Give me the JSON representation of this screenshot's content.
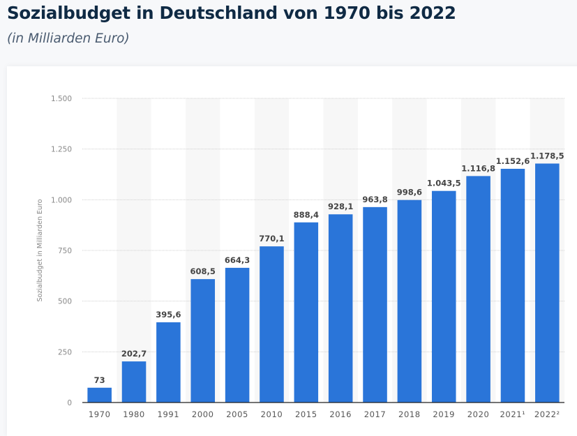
{
  "header": {
    "title": "Sozialbudget in Deutschland von 1970 bis 2022",
    "subtitle": "(in Milliarden Euro)"
  },
  "chart_data": {
    "type": "bar",
    "title": "Sozialbudget in Deutschland von 1970 bis 2022",
    "subtitle": "(in Milliarden Euro)",
    "xlabel": "",
    "ylabel": "Sozialbudget in Milliarden Euro",
    "ylim": [
      0,
      1500
    ],
    "yticks": [
      0,
      250,
      500,
      750,
      1000,
      1250,
      1500
    ],
    "ytick_labels": [
      "0",
      "250",
      "500",
      "750",
      "1.000",
      "1.250",
      "1.500"
    ],
    "grid": true,
    "categories": [
      "1970",
      "1980",
      "1991",
      "2000",
      "2005",
      "2010",
      "2015",
      "2016",
      "2017",
      "2018",
      "2019",
      "2020",
      "2021¹",
      "2022²"
    ],
    "values": [
      73,
      202.7,
      395.6,
      608.5,
      664.3,
      770.1,
      888.4,
      928.1,
      963.8,
      998.6,
      1043.5,
      1116.8,
      1152.6,
      1178.5
    ],
    "value_labels": [
      "73",
      "202,7",
      "395,6",
      "608,5",
      "664,3",
      "770,1",
      "888,4",
      "928,1",
      "963,8",
      "998,6",
      "1.043,5",
      "1.116,8",
      "1.152,6",
      "1.178,5"
    ],
    "bar_color": "#2a75d9",
    "band_color": "#f7f7f7"
  }
}
